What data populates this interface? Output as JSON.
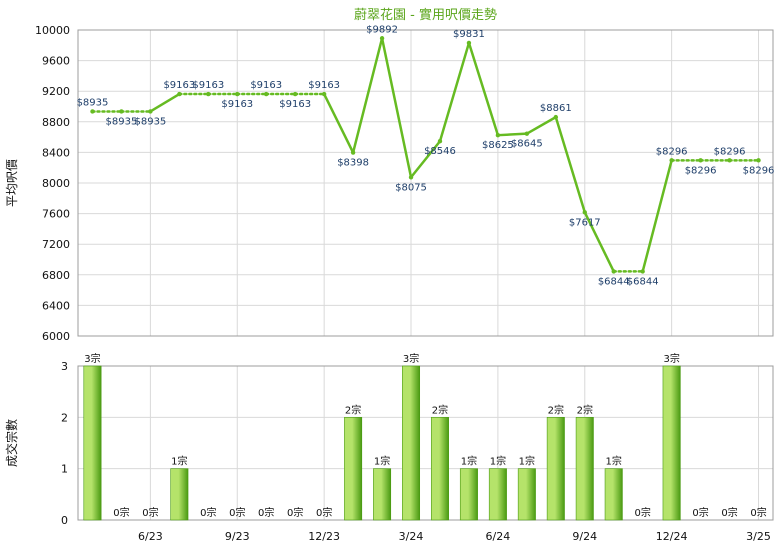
{
  "colors": {
    "line": "#66bb22",
    "bar_light": "#b5e36a",
    "bar_dark": "#4a9a12",
    "title": "#5aa51a",
    "price_label": "#1f3f6a"
  },
  "chart_data": [
    {
      "type": "line",
      "title": "蔚翠花園 - 實用呎價走勢",
      "ylabel": "平均呎價",
      "ylim": [
        6000,
        10000
      ],
      "y_ticks": [
        6000,
        6400,
        6800,
        7200,
        7600,
        8000,
        8400,
        8800,
        9200,
        9600,
        10000
      ],
      "x": [
        "2023-04",
        "2023-05",
        "2023-06",
        "2023-07",
        "2023-08",
        "2023-09",
        "2023-10",
        "2023-11",
        "2023-12",
        "2024-01",
        "2024-02",
        "2024-03",
        "2024-04",
        "2024-05",
        "2024-06",
        "2024-07",
        "2024-08",
        "2024-09",
        "2024-10",
        "2024-11",
        "2024-12",
        "2025-01",
        "2025-02",
        "2025-03"
      ],
      "x_tick_labels": [
        "6/23",
        "9/23",
        "12/23",
        "3/24",
        "6/24",
        "9/24",
        "12/24",
        "3/25"
      ],
      "values": [
        8935,
        8935,
        8935,
        9163,
        9163,
        9163,
        9163,
        9163,
        9163,
        8398,
        9892,
        8075,
        8546,
        9831,
        8625,
        8645,
        8861,
        7617,
        6844,
        6844,
        8296,
        8296,
        8296,
        8296
      ],
      "labels": [
        "$8935",
        "$8935",
        "$8935",
        "$9163",
        "$9163",
        "$9163",
        "$9163",
        "$9163",
        "$9163",
        "$8398",
        "$9892",
        "$8075",
        "$8546",
        "$9831",
        "$8625",
        "$8645",
        "$8861",
        "$7617",
        "$6844",
        "$6844",
        "$8296",
        "$8296",
        "$8296",
        "$8296"
      ],
      "has_transaction": [
        true,
        false,
        false,
        true,
        false,
        false,
        false,
        false,
        false,
        true,
        true,
        true,
        true,
        true,
        true,
        true,
        true,
        true,
        true,
        false,
        true,
        false,
        false,
        false
      ]
    },
    {
      "type": "bar",
      "ylabel": "成交宗數",
      "ylim": [
        0,
        3
      ],
      "y_ticks": [
        0,
        1,
        2,
        3
      ],
      "x": [
        "2023-04",
        "2023-05",
        "2023-06",
        "2023-07",
        "2023-08",
        "2023-09",
        "2023-10",
        "2023-11",
        "2023-12",
        "2024-01",
        "2024-02",
        "2024-03",
        "2024-04",
        "2024-05",
        "2024-06",
        "2024-07",
        "2024-08",
        "2024-09",
        "2024-10",
        "2024-11",
        "2024-12",
        "2025-01",
        "2025-02",
        "2025-03"
      ],
      "x_tick_labels": [
        "6/23",
        "9/23",
        "12/23",
        "3/24",
        "6/24",
        "9/24",
        "12/24",
        "3/25"
      ],
      "values": [
        3,
        0,
        0,
        1,
        0,
        0,
        0,
        0,
        0,
        2,
        1,
        3,
        2,
        1,
        1,
        1,
        2,
        2,
        1,
        0,
        3,
        0,
        0,
        0
      ],
      "labels": [
        "3宗",
        "0宗",
        "0宗",
        "1宗",
        "0宗",
        "0宗",
        "0宗",
        "0宗",
        "0宗",
        "2宗",
        "1宗",
        "3宗",
        "2宗",
        "1宗",
        "1宗",
        "1宗",
        "2宗",
        "2宗",
        "1宗",
        "0宗",
        "3宗",
        "0宗",
        "0宗",
        "0宗"
      ]
    }
  ]
}
